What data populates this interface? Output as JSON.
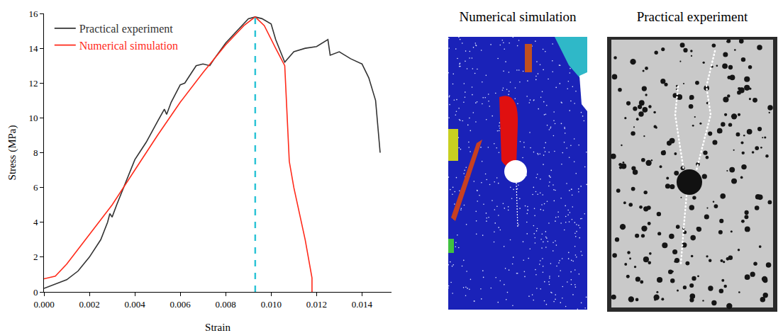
{
  "chart_data": {
    "type": "line",
    "x_label": "Strain",
    "y_label": "Stress (MPa)",
    "xlim": [
      0,
      0.0153
    ],
    "ylim": [
      0,
      16
    ],
    "xticks": [
      {
        "value": 0,
        "label": "0.000"
      },
      {
        "value": 0.002,
        "label": "0.002"
      },
      {
        "value": 0.004,
        "label": "0.004"
      },
      {
        "value": 0.006,
        "label": "0.006"
      },
      {
        "value": 0.008,
        "label": "0.008"
      },
      {
        "value": 0.01,
        "label": "0.010"
      },
      {
        "value": 0.012,
        "label": "0.012"
      },
      {
        "value": 0.014,
        "label": "0.014"
      }
    ],
    "yticks": [
      0,
      2,
      4,
      6,
      8,
      10,
      12,
      14,
      16
    ],
    "grid": false,
    "legend": "top-left",
    "series": [
      {
        "name": "Practical experiment",
        "color": "#333333",
        "x": [
          0,
          0.001,
          0.0015,
          0.002,
          0.0025,
          0.0028,
          0.0029,
          0.003,
          0.0032,
          0.0035,
          0.004,
          0.0042,
          0.0045,
          0.005,
          0.0053,
          0.0054,
          0.0056,
          0.006,
          0.0062,
          0.0065,
          0.0067,
          0.007,
          0.0073,
          0.0075,
          0.008,
          0.0085,
          0.009,
          0.0093,
          0.0096,
          0.01,
          0.0102,
          0.0106,
          0.011,
          0.0115,
          0.012,
          0.0125,
          0.0126,
          0.013,
          0.0135,
          0.014,
          0.0143,
          0.0146,
          0.0148
        ],
        "values": [
          0.2,
          0.7,
          1.2,
          2.0,
          3.0,
          4.0,
          4.5,
          4.3,
          5.0,
          6.0,
          7.6,
          8.0,
          8.6,
          9.8,
          10.5,
          10.2,
          10.9,
          11.9,
          12.0,
          12.6,
          13.0,
          13.1,
          13.0,
          13.4,
          14.3,
          15.0,
          15.7,
          15.8,
          15.7,
          15.4,
          14.5,
          13.2,
          13.8,
          14.0,
          14.1,
          14.5,
          13.6,
          13.8,
          13.4,
          13.1,
          12.3,
          11.0,
          8.0
        ]
      },
      {
        "name": "Numerical simulation",
        "color": "#ff2a1a",
        "x": [
          0,
          0.0005,
          0.001,
          0.002,
          0.003,
          0.004,
          0.005,
          0.006,
          0.007,
          0.008,
          0.0088,
          0.0093,
          0.0097,
          0.0102,
          0.0106,
          0.0108,
          0.011,
          0.0115,
          0.0118,
          0.0118
        ],
        "values": [
          0.75,
          0.9,
          1.6,
          3.3,
          5.0,
          7.0,
          9.0,
          10.9,
          12.6,
          14.2,
          15.3,
          15.8,
          15.3,
          14.0,
          13.0,
          7.5,
          6.0,
          3.0,
          0.8,
          0
        ]
      }
    ],
    "vline": {
      "x": 0.0093,
      "color": "#2ec4d6",
      "line_style": "dash"
    }
  },
  "panels": [
    {
      "title": "Numerical simulation"
    },
    {
      "title": "Practical experiment"
    }
  ]
}
